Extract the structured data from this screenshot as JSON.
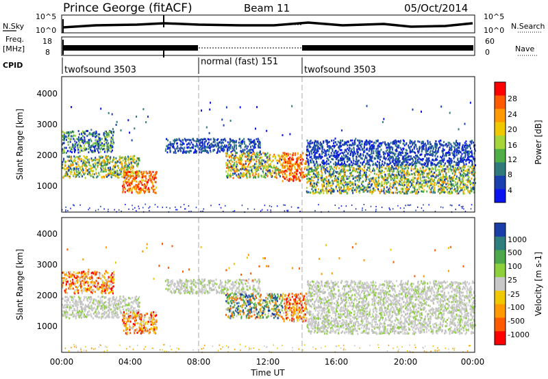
{
  "header": {
    "station": "Prince George (fitACF)",
    "beam": "Beam 11",
    "date": "05/Oct/2014"
  },
  "panels": {
    "nsky": {
      "left_label": "N.Sky",
      "left_ticks": [
        "10^5",
        "10^0"
      ],
      "right_ticks": [
        "10^5",
        "10^0"
      ],
      "right_label": "N.Search"
    },
    "freq": {
      "left_label_1": "Freq.",
      "left_label_2": "[MHz]",
      "left_ticks": [
        "18",
        "8"
      ],
      "right_ticks": [
        "60",
        "0"
      ],
      "right_label": "Nave"
    },
    "cpid": {
      "label": "CPID",
      "segments": [
        "twofsound 3503",
        "normal (fast) 151",
        "twofsound 3503"
      ]
    }
  },
  "axes": {
    "y_label": "Slant Range [km]",
    "y_ticks": [
      "4000",
      "3000",
      "2000",
      "1000"
    ],
    "x_label": "Time UT",
    "x_ticks": [
      "00:00",
      "04:00",
      "08:00",
      "12:00",
      "16:00",
      "20:00",
      "00:00"
    ]
  },
  "colorbars": {
    "power": {
      "label": "Power [dB]",
      "ticks": [
        "28",
        "24",
        "20",
        "16",
        "12",
        "8",
        "4"
      ],
      "colors": [
        "#ff0000",
        "#ff5a00",
        "#ff9a00",
        "#f0c800",
        "#a6d63a",
        "#4fae47",
        "#2f7a7a",
        "#1a40b0",
        "#0a14f0"
      ]
    },
    "velocity": {
      "label": "Velocity [m s-1]",
      "ticks": [
        "1000",
        "500",
        "100",
        "25",
        "-25",
        "-100",
        "-500",
        "-1000"
      ],
      "colors": [
        "#1a3ea8",
        "#2f7e7e",
        "#4ca84a",
        "#8cd03c",
        "#c8c8c8",
        "#f0c800",
        "#ff9a00",
        "#ff5a00",
        "#ff0000"
      ]
    }
  },
  "chart_data": {
    "type": "heatmap",
    "x_range_hours": [
      0,
      24
    ],
    "y_range_km": [
      180,
      4500
    ],
    "scheme_changes_hours": [
      8.0,
      14.1
    ],
    "series": [
      {
        "panel": "power",
        "bands": [
          {
            "t0": 0.0,
            "t1": 3.0,
            "r0": 2100,
            "r1": 2800,
            "level": "mixed-low"
          },
          {
            "t0": 0.0,
            "t1": 4.5,
            "r0": 1300,
            "r1": 2000,
            "level": "mixed-mid"
          },
          {
            "t0": 3.5,
            "t1": 5.5,
            "r0": 800,
            "r1": 1500,
            "level": "high"
          },
          {
            "t0": 6.0,
            "t1": 11.5,
            "r0": 2100,
            "r1": 2550,
            "level": "low"
          },
          {
            "t0": 9.5,
            "t1": 12.8,
            "r0": 1300,
            "r1": 2100,
            "level": "mid-high"
          },
          {
            "t0": 12.8,
            "t1": 14.2,
            "r0": 1200,
            "r1": 2100,
            "level": "high"
          },
          {
            "t0": 14.2,
            "t1": 24.0,
            "r0": 800,
            "r1": 1700,
            "level": "mid"
          },
          {
            "t0": 14.2,
            "t1": 24.0,
            "r0": 1700,
            "r1": 2500,
            "level": "low"
          }
        ]
      },
      {
        "panel": "velocity",
        "bands": [
          {
            "t0": 0.0,
            "t1": 3.0,
            "r0": 2100,
            "r1": 2800,
            "level": "negative"
          },
          {
            "t0": 0.0,
            "t1": 4.5,
            "r0": 1300,
            "r1": 2000,
            "level": "near-zero"
          },
          {
            "t0": 3.5,
            "t1": 5.5,
            "r0": 800,
            "r1": 1500,
            "level": "negative"
          },
          {
            "t0": 6.0,
            "t1": 11.5,
            "r0": 2100,
            "r1": 2550,
            "level": "near-zero"
          },
          {
            "t0": 9.5,
            "t1": 12.8,
            "r0": 1300,
            "r1": 2100,
            "level": "mixed"
          },
          {
            "t0": 12.8,
            "t1": 14.2,
            "r0": 1200,
            "r1": 2100,
            "level": "negative"
          },
          {
            "t0": 14.2,
            "t1": 24.0,
            "r0": 800,
            "r1": 1700,
            "level": "near-zero"
          },
          {
            "t0": 14.2,
            "t1": 24.0,
            "r0": 1700,
            "r1": 2500,
            "level": "near-zero"
          }
        ]
      }
    ]
  }
}
